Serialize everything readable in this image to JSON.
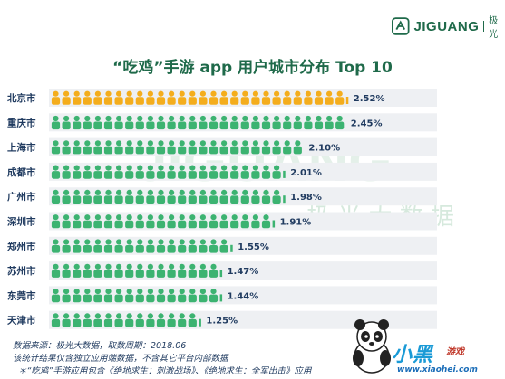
{
  "header": {
    "logo_text": "JIGUANG",
    "logo_cn": "极光"
  },
  "watermark": {
    "en": "JIGUANG",
    "cn": "极 光 大 数 据"
  },
  "chart_data": {
    "type": "bar",
    "title": "“吃鸡”手游 app 用户城市分布 Top 10",
    "categories": [
      "北京市",
      "重庆市",
      "上海市",
      "成都市",
      "广州市",
      "深圳市",
      "郑州市",
      "苏州市",
      "东莞市",
      "天津市"
    ],
    "values": [
      2.52,
      2.45,
      2.1,
      2.01,
      1.98,
      1.91,
      1.55,
      1.47,
      1.44,
      1.25
    ],
    "value_labels": [
      "2.52%",
      "2.45%",
      "2.10%",
      "2.01%",
      "1.98%",
      "1.91%",
      "1.55%",
      "1.47%",
      "1.44%",
      "1.25%"
    ],
    "unit": "%",
    "highlight_index": 0,
    "colors": {
      "highlight": "#f4ad1c",
      "default": "#3cb371",
      "row_bg": "#eef0f3",
      "label": "#1f3a5f"
    }
  },
  "footer": {
    "line1": "数据来源：极光大数据，取数周期：2018.06",
    "line2": "该统计结果仅含独立应用端数据，不含其它平台内部数据",
    "line3": "＊“吃鸡”手游应用包含《绝地求生：刺激战场》、《绝地求生：全军出击》应用"
  },
  "brand": {
    "name": "小黑",
    "sub": "游戏",
    "url": "www.xiaohei.com"
  }
}
